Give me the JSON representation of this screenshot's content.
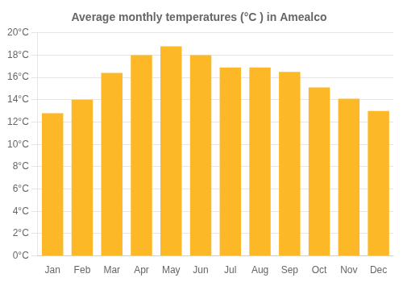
{
  "chart_data": {
    "type": "bar",
    "title": "Average monthly temperatures (°C ) in Amealco",
    "categories": [
      "Jan",
      "Feb",
      "Mar",
      "Apr",
      "May",
      "Jun",
      "Jul",
      "Aug",
      "Sep",
      "Oct",
      "Nov",
      "Dec"
    ],
    "values": [
      12.8,
      14.0,
      16.4,
      18.0,
      18.8,
      18.0,
      16.9,
      16.9,
      16.5,
      15.1,
      14.1,
      13.0
    ],
    "color": "#FDB827",
    "ylim": [
      0,
      20
    ],
    "yticks": [
      {
        "value": 0,
        "label": "0°C"
      },
      {
        "value": 2,
        "label": "2°C"
      },
      {
        "value": 4,
        "label": "4°C"
      },
      {
        "value": 6,
        "label": "6°C"
      },
      {
        "value": 8,
        "label": "8°C"
      },
      {
        "value": 10,
        "label": "10°C"
      },
      {
        "value": 12,
        "label": "12°C"
      },
      {
        "value": 14,
        "label": "14°C"
      },
      {
        "value": 16,
        "label": "16°C"
      },
      {
        "value": 18,
        "label": "18°C"
      },
      {
        "value": 20,
        "label": "20°C"
      }
    ],
    "grid": "y"
  }
}
